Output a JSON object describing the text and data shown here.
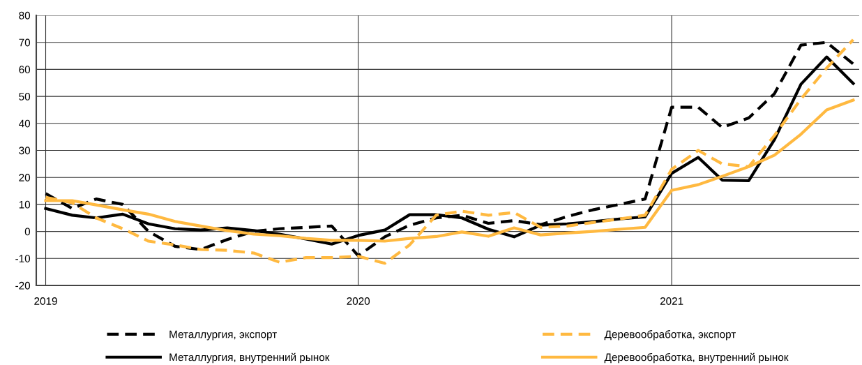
{
  "chart_data": {
    "type": "line",
    "x": [
      "2019-01-15",
      "2019-02-15",
      "2019-03-15",
      "2019-04-15",
      "2019-05-15",
      "2019-06-15",
      "2019-07-15",
      "2019-08-15",
      "2019-09-15",
      "2019-10-15",
      "2019-11-15",
      "2019-12-15",
      "2020-01-15",
      "2020-02-15",
      "2020-03-15",
      "2020-04-15",
      "2020-05-15",
      "2020-06-15",
      "2020-07-15",
      "2020-08-15",
      "2020-09-15",
      "2020-10-15",
      "2020-11-15",
      "2020-12-15",
      "2021-01-15",
      "2021-02-15",
      "2021-03-15",
      "2021-04-15",
      "2021-05-15",
      "2021-06-15",
      "2021-07-15",
      "2021-08-15"
    ],
    "series": [
      {
        "name": "Металлургия, экспорт",
        "color": "#000000",
        "line_style": "dashed",
        "values": [
          14,
          8.5,
          12,
          10,
          0,
          -5.5,
          -6.7,
          -3,
          0,
          1,
          1.5,
          2,
          -9,
          -2,
          2.3,
          5,
          6,
          3,
          4,
          2.5,
          5.5,
          8,
          10,
          12,
          46,
          46,
          38.5,
          42,
          51,
          69,
          70,
          62
        ]
      },
      {
        "name": "Металлургия, внутренний рынок",
        "color": "#000000",
        "line_style": "solid",
        "values": [
          8.5,
          6,
          5,
          6.4,
          2.8,
          1,
          0.5,
          1.3,
          0.3,
          -1,
          -2.8,
          -4.7,
          -1.5,
          0.5,
          6.2,
          6.2,
          5,
          0.8,
          -2,
          2.3,
          2.8,
          3.6,
          4.6,
          5.4,
          21.5,
          27.4,
          19,
          18.8,
          34,
          54.5,
          64.6,
          54.8
        ]
      },
      {
        "name": "Деревообработка, экспорт",
        "color": "#ffb940",
        "line_style": "dashed",
        "values": [
          12.6,
          10.6,
          5,
          1,
          -3.6,
          -5,
          -6.7,
          -7,
          -8,
          -11.4,
          -9.7,
          -9.7,
          -9.2,
          -11.8,
          -5,
          6,
          7.5,
          6,
          7,
          1.5,
          2,
          3.3,
          4.6,
          6,
          23,
          30,
          25,
          24,
          35.5,
          49,
          60.5,
          71
        ]
      },
      {
        "name": "Деревообработка, внутренний рынок",
        "color": "#ffb940",
        "line_style": "solid",
        "values": [
          11.4,
          11.4,
          9.8,
          8,
          6.4,
          3.7,
          2,
          0.3,
          -1,
          -1.6,
          -2.6,
          -3.3,
          -3.3,
          -3.6,
          -2.6,
          -1.9,
          -0.2,
          -1.8,
          1.3,
          -1.3,
          -0.6,
          0,
          0.8,
          1.5,
          15.2,
          17.3,
          20.4,
          24,
          28.2,
          36,
          45,
          48.6
        ]
      }
    ],
    "xlim": [
      "2019-01-04",
      "2021-08-22"
    ],
    "xticks": [
      {
        "value": "2019-01-15",
        "label": "2019"
      },
      {
        "value": "2020-01-15",
        "label": "2020"
      },
      {
        "value": "2021-01-15",
        "label": "2021"
      }
    ],
    "ylim": [
      -20,
      80
    ],
    "yticks": [
      -20,
      -10,
      0,
      10,
      20,
      30,
      40,
      50,
      60,
      70,
      80
    ],
    "grid": true,
    "legend": "bottom",
    "marker": "none"
  }
}
